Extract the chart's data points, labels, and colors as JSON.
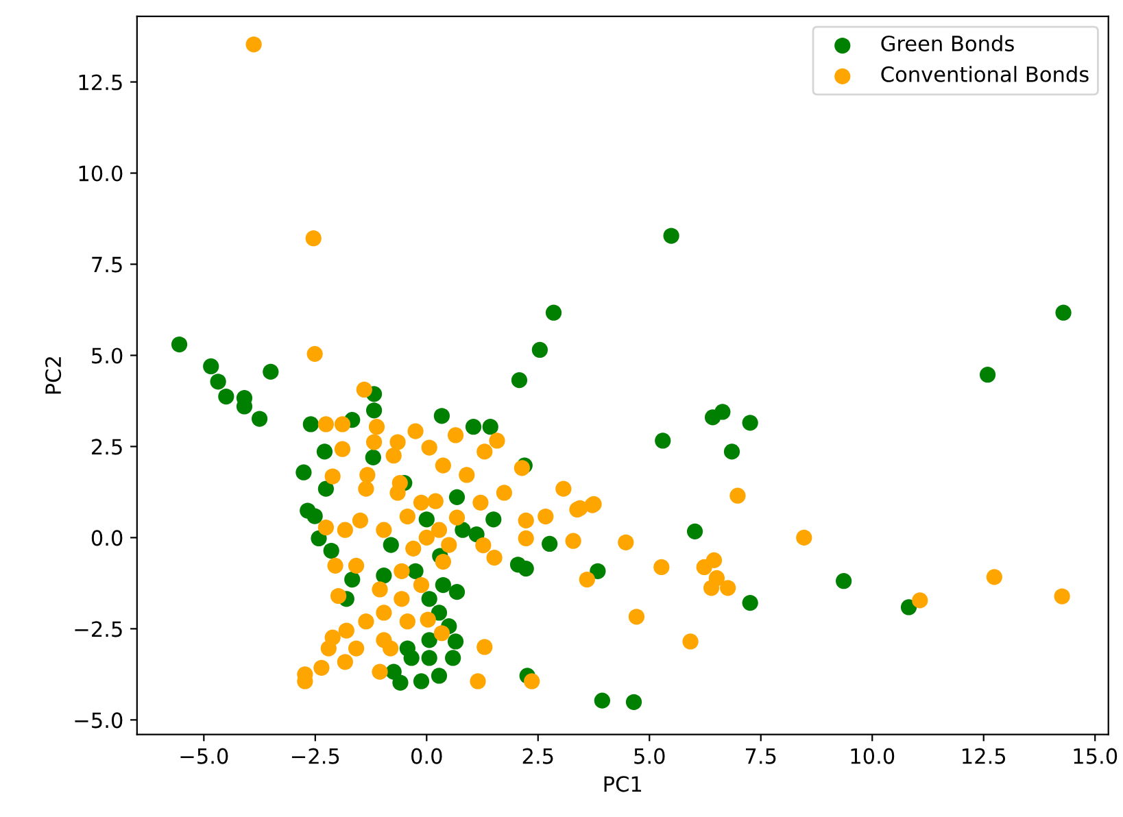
{
  "chart_data": {
    "type": "scatter",
    "xlabel": "PC1",
    "ylabel": "PC2",
    "legend": "top right",
    "marker": "circle",
    "grid": false,
    "xlim": [
      -6.5,
      15.3
    ],
    "ylim": [
      -5.4,
      14.3
    ],
    "xticks": [
      {
        "value": -5,
        "label": "−5.0"
      },
      {
        "value": -2.5,
        "label": "−2.5"
      },
      {
        "value": 0,
        "label": "0.0"
      },
      {
        "value": 2.5,
        "label": "2.5"
      },
      {
        "value": 5,
        "label": "5.0"
      },
      {
        "value": 7.5,
        "label": "7.5"
      },
      {
        "value": 10,
        "label": "10.0"
      },
      {
        "value": 12.5,
        "label": "12.5"
      },
      {
        "value": 15,
        "label": "15.0"
      }
    ],
    "yticks": [
      {
        "value": -5,
        "label": "−5.0"
      },
      {
        "value": -2.5,
        "label": "−2.5"
      },
      {
        "value": 0,
        "label": "0.0"
      },
      {
        "value": 2.5,
        "label": "2.5"
      },
      {
        "value": 5,
        "label": "5.0"
      },
      {
        "value": 7.5,
        "label": "7.5"
      },
      {
        "value": 10,
        "label": "10.0"
      },
      {
        "value": 12.5,
        "label": "12.5"
      }
    ],
    "series": [
      {
        "name": "Green Bonds",
        "color": "#008000",
        "x": [
          -5.55,
          -4.84,
          -4.68,
          -4.5,
          -4.09,
          -4.09,
          -3.5,
          -3.75,
          2.08,
          2.54,
          2.85,
          5.49,
          5.3,
          6.42,
          6.64,
          7.26,
          6.85,
          6.02,
          3.84,
          7.26,
          9.36,
          10.82,
          12.59,
          14.29,
          3.94,
          4.65,
          2.26,
          0.34,
          1.05,
          1.43,
          -2.6,
          -1.18,
          -1.18,
          -2.76,
          -2.67,
          -2.42,
          -2.14,
          -1.67,
          0.68,
          0.81,
          1.12,
          2.05,
          2.23,
          2.76,
          0.37,
          0.68,
          0.28,
          0.5,
          0.65,
          0.59,
          0.06,
          -0.34,
          -0.12,
          -0.59,
          -0.74,
          0.28,
          0.06,
          -0.43,
          0.06,
          -0.25,
          -0.96,
          -1.8,
          -2.51,
          -2.26,
          -2.29,
          -1.67,
          2.2,
          0.0,
          -0.5,
          1.5,
          0.3,
          -1.2,
          -0.8
        ],
        "values": [
          5.3,
          4.7,
          4.28,
          3.87,
          3.83,
          3.6,
          4.55,
          3.26,
          4.32,
          5.15,
          6.17,
          8.28,
          2.66,
          3.3,
          3.45,
          3.15,
          2.36,
          0.17,
          -0.92,
          -1.79,
          -1.19,
          -1.91,
          4.47,
          6.17,
          -4.47,
          -4.51,
          -3.79,
          3.34,
          3.04,
          3.04,
          3.11,
          3.94,
          3.49,
          1.79,
          0.74,
          -0.02,
          -0.36,
          -1.15,
          1.11,
          0.21,
          0.09,
          -0.74,
          -0.85,
          -0.17,
          -1.3,
          -1.49,
          -2.06,
          -2.43,
          -2.85,
          -3.3,
          -3.3,
          -3.3,
          -3.94,
          -3.98,
          -3.68,
          -3.79,
          -2.81,
          -3.04,
          -1.68,
          -0.92,
          -1.04,
          -1.68,
          0.59,
          1.34,
          2.36,
          3.23,
          1.98,
          0.5,
          1.5,
          0.5,
          -0.5,
          2.2,
          -0.2
        ]
      },
      {
        "name": "Conventional Bonds",
        "color": "#ffa500",
        "x": [
          -3.88,
          -2.54,
          -2.51,
          -1.4,
          6.98,
          8.47,
          12.74,
          14.26,
          11.07,
          4.47,
          5.27,
          6.23,
          6.45,
          6.39,
          6.76,
          6.51,
          4.71,
          5.92,
          3.6,
          3.72,
          3.44,
          -2.26,
          -1.89,
          -1.12,
          -0.25,
          0.65,
          1.58,
          1.3,
          -1.89,
          -2.11,
          -1.33,
          -0.74,
          0.06,
          0.37,
          0.9,
          2.14,
          1.74,
          3.07,
          3.75,
          3.38,
          2.67,
          2.23,
          1.21,
          0.68,
          0.28,
          -0.43,
          -0.96,
          -1.49,
          -1.83,
          -2.26,
          2.23,
          1.52,
          1.27,
          3.29,
          -2.05,
          -1.58,
          -0.56,
          0.37,
          -0.12,
          -1.98,
          -1.05,
          -0.56,
          -0.96,
          -1.36,
          -1.8,
          -2.11,
          -2.2,
          -1.58,
          -0.96,
          -0.43,
          0.03,
          0.34,
          -0.81,
          -1.83,
          -2.36,
          -2.73,
          -2.73,
          -1.05,
          1.3,
          1.15,
          2.36,
          -1.36,
          -0.65,
          -0.12,
          -1.18,
          -0.65,
          0.0,
          -0.3,
          0.2,
          -0.6,
          0.5
        ],
        "values": [
          13.53,
          8.21,
          5.04,
          4.06,
          1.15,
          0.0,
          -1.08,
          -1.61,
          -1.72,
          -0.13,
          -0.81,
          -0.81,
          -0.62,
          -1.38,
          -1.38,
          -1.11,
          -2.17,
          -2.85,
          -1.15,
          0.89,
          0.81,
          3.11,
          3.11,
          3.04,
          2.92,
          2.81,
          2.66,
          2.36,
          2.43,
          1.68,
          1.72,
          2.25,
          2.47,
          1.98,
          1.72,
          1.91,
          1.23,
          1.34,
          0.92,
          0.77,
          0.58,
          0.47,
          0.96,
          0.55,
          0.21,
          0.58,
          0.21,
          0.47,
          0.21,
          0.28,
          -0.02,
          -0.55,
          -0.21,
          -0.09,
          -0.77,
          -0.77,
          -0.92,
          -0.66,
          -1.3,
          -1.6,
          -1.42,
          -1.68,
          -2.06,
          -2.3,
          -2.55,
          -2.74,
          -3.04,
          -3.04,
          -2.81,
          -2.3,
          -2.25,
          -2.62,
          -3.04,
          -3.41,
          -3.57,
          -3.94,
          -3.75,
          -3.68,
          -3.0,
          -3.94,
          -3.94,
          1.34,
          1.23,
          0.96,
          2.62,
          2.62,
          0.0,
          -0.3,
          1.0,
          1.5,
          -0.2
        ]
      }
    ]
  }
}
